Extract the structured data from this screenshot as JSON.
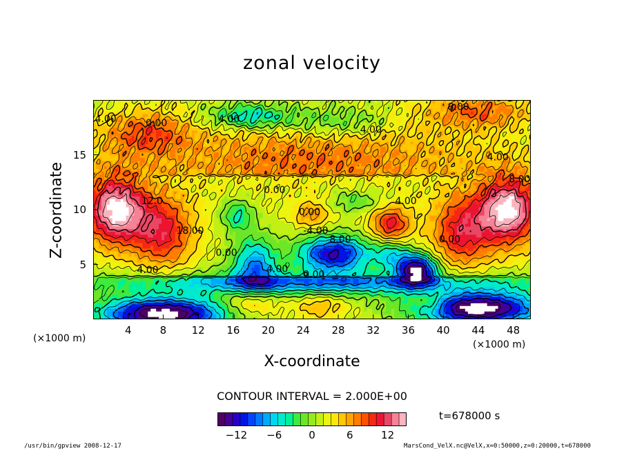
{
  "chart_data": {
    "type": "heatmap",
    "title": "zonal velocity",
    "xlabel": "X-coordinate",
    "ylabel": "Z-coordinate",
    "x_unit": "(×1000 m)",
    "z_unit": "(×1000 m)",
    "xlim": [
      0,
      50
    ],
    "ylim": [
      0,
      20
    ],
    "x_ticks": [
      "4",
      "8",
      "12",
      "16",
      "20",
      "24",
      "28",
      "32",
      "36",
      "40",
      "44",
      "48"
    ],
    "x_tick_values": [
      4,
      8,
      12,
      16,
      20,
      24,
      28,
      32,
      36,
      40,
      44,
      48
    ],
    "y_ticks": [
      "5",
      "10",
      "15"
    ],
    "y_tick_values": [
      5,
      10,
      15
    ],
    "contour_interval": "CONTOUR INTERVAL = 2.000E+00",
    "time_label": "t=678000 s",
    "colorbar": {
      "min": -15,
      "max": 15,
      "ticks": [
        "−12",
        "−6",
        "0",
        "6",
        "12"
      ],
      "tick_values": [
        -12,
        -6,
        0,
        6,
        12
      ],
      "colormap": "rainbow (purple-blue-cyan-green-yellow-orange-red-pink)"
    },
    "features": [
      {
        "kind": "max",
        "x": 3,
        "z": 10,
        "value": 14
      },
      {
        "kind": "max",
        "x": 47,
        "z": 10,
        "value": 14
      },
      {
        "kind": "max",
        "x": 34,
        "z": 8.7,
        "value": 10
      },
      {
        "kind": "min",
        "x": 28,
        "z": 5.8,
        "value": -12
      },
      {
        "kind": "min",
        "x": 37,
        "z": 4.5,
        "value": -15
      },
      {
        "kind": "min",
        "x": 18.5,
        "z": 5,
        "value": -8
      },
      {
        "kind": "min",
        "x": 8,
        "z": 1,
        "value": -14
      },
      {
        "kind": "min",
        "x": 45,
        "z": 1.5,
        "value": -14
      }
    ],
    "contour_labels": [
      {
        "text": "4.00",
        "x": 5,
        "z": 4.2
      },
      {
        "text": "12.0",
        "x": 5.5,
        "z": 10.5
      },
      {
        "text": "18.00",
        "x": 9.5,
        "z": 7.8
      },
      {
        "text": "0.00",
        "x": 14,
        "z": 5.8
      },
      {
        "text": "0.00",
        "x": 24,
        "z": 3.8
      },
      {
        "text": "-4.00",
        "x": 24,
        "z": 7.8
      },
      {
        "text": "8.00",
        "x": 27,
        "z": 7.0
      },
      {
        "text": "4.00",
        "x": 19.8,
        "z": 4.3
      },
      {
        "text": "0.00",
        "x": 19.5,
        "z": 11.5
      },
      {
        "text": "0.00",
        "x": 23.5,
        "z": 9.5
      },
      {
        "text": "4.00",
        "x": 34.5,
        "z": 10.5
      },
      {
        "text": "0.00",
        "x": 39.5,
        "z": 7
      },
      {
        "text": "4.00",
        "x": 45,
        "z": 14.5
      },
      {
        "text": "8.00",
        "x": 47.5,
        "z": 12.5
      },
      {
        "text": "4.00",
        "x": 30.5,
        "z": 17
      },
      {
        "text": "4.00",
        "x": 14.3,
        "z": 18
      },
      {
        "text": "0.00",
        "x": 6,
        "z": 17.6
      },
      {
        "text": "8.00",
        "x": 40.5,
        "z": 19.1
      },
      {
        "text": "4.00",
        "x": 0.2,
        "z": 18
      }
    ]
  },
  "footer": {
    "left": "/usr/bin/gpview   2008-12-17",
    "right": "MarsCond_VelX.nc@VelX,x=0:50000,z=0:20000,t=678000"
  }
}
